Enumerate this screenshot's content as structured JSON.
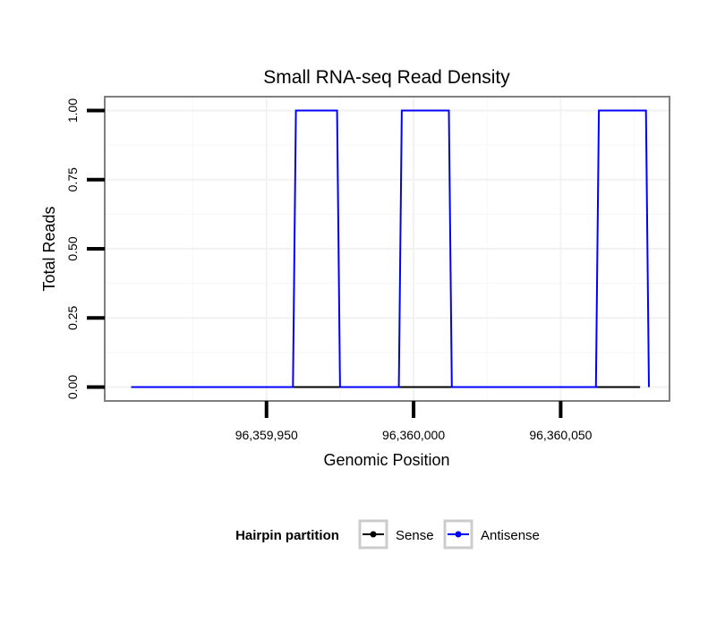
{
  "chart_data": {
    "type": "line",
    "title": "Small RNA-seq Read Density",
    "xlabel": "Genomic Position",
    "ylabel": "Total Reads",
    "xlim": [
      96359895,
      96360087
    ],
    "ylim": [
      -0.05,
      1.05
    ],
    "x_ticks": [
      96359950,
      96360000,
      96360050
    ],
    "x_tick_labels": [
      "96,359,950",
      "96,360,000",
      "96,360,050"
    ],
    "y_ticks": [
      0,
      0.25,
      0.5,
      0.75,
      1.0
    ],
    "y_tick_labels": [
      "0.00",
      "0.25",
      "0.50",
      "0.75",
      "1.00"
    ],
    "grid": true,
    "legend": {
      "title": "Hairpin partition",
      "position": "bottom",
      "entries": [
        "Sense",
        "Antisense"
      ]
    },
    "series": [
      {
        "name": "Sense",
        "color": "#000000",
        "x": [
          96359904,
          96360077
        ],
        "y": [
          0,
          0
        ]
      },
      {
        "name": "Antisense",
        "color": "#0000ff",
        "x": [
          96359904,
          96359959,
          96359960,
          96359974,
          96359975,
          96359995,
          96359996,
          96360012,
          96360013,
          96360062,
          96360063,
          96360079,
          96360080
        ],
        "y": [
          0,
          0,
          1,
          1,
          0,
          0,
          1,
          1,
          0,
          0,
          1,
          1,
          0
        ]
      }
    ]
  }
}
